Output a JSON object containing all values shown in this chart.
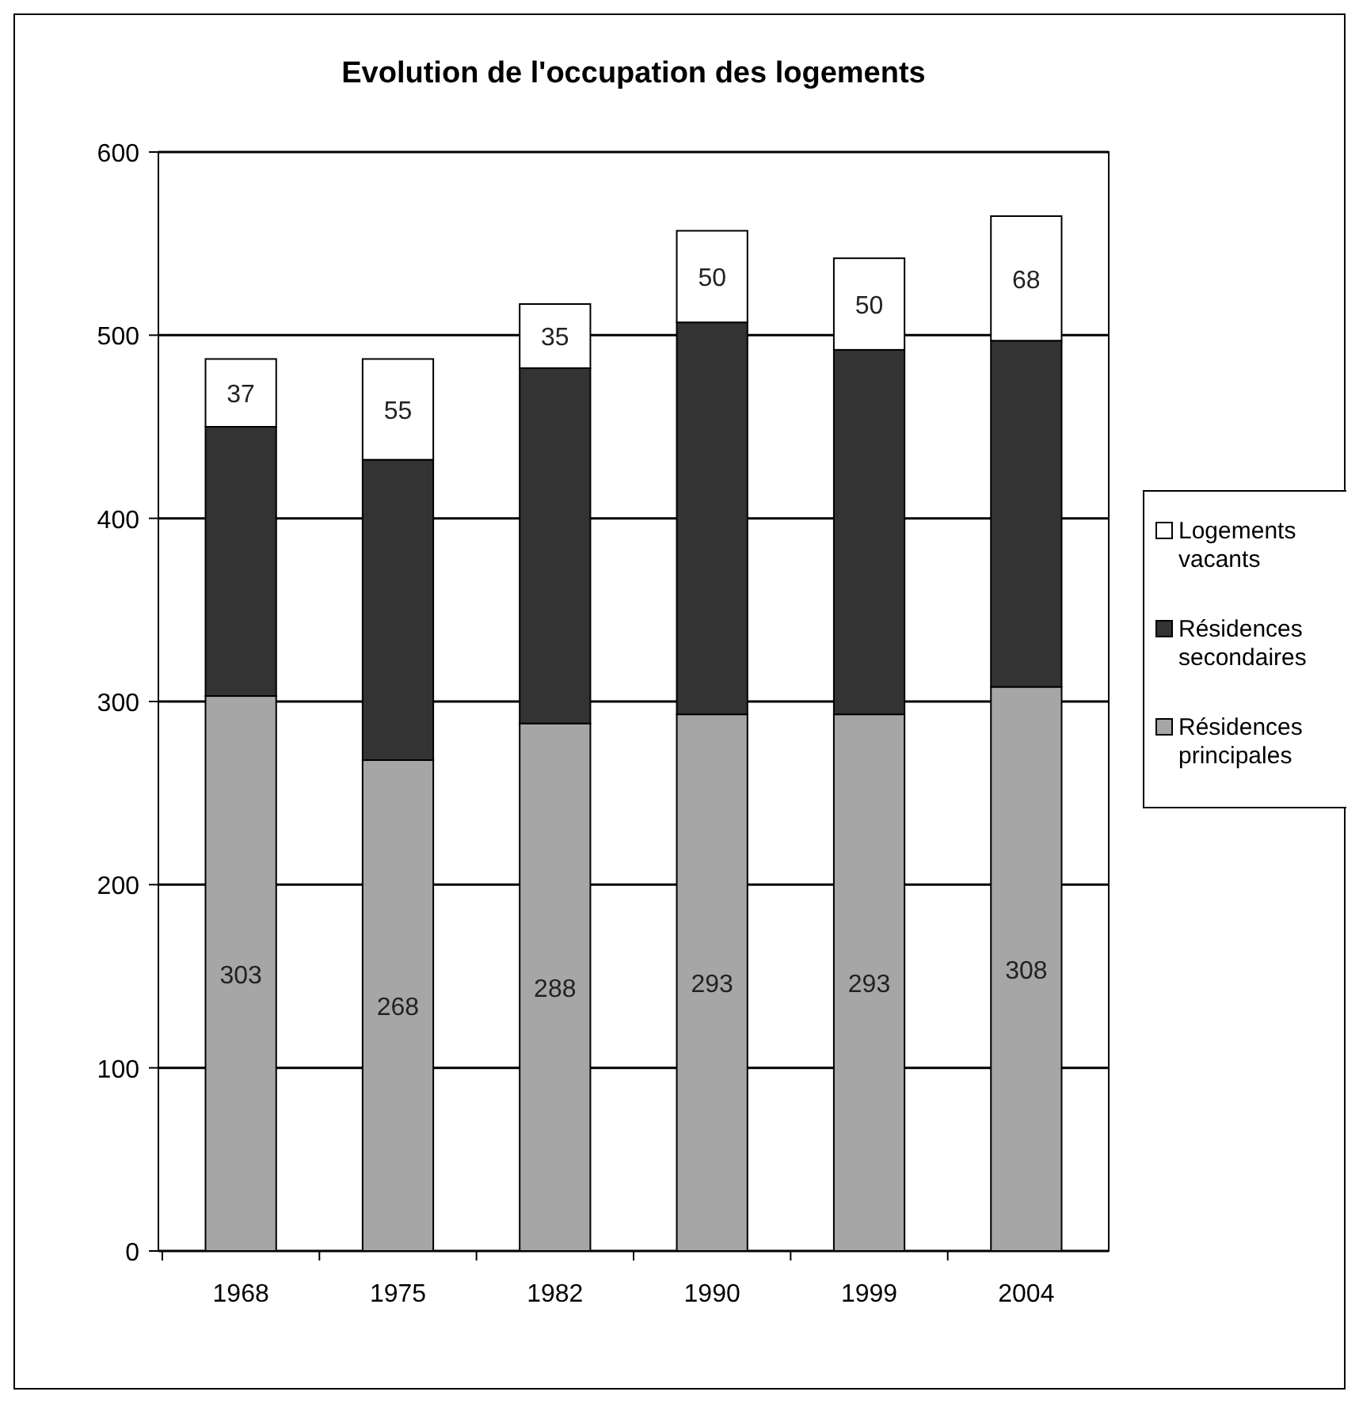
{
  "chart_data": {
    "type": "bar",
    "title": "Evolution de l'occupation des logements",
    "categories": [
      "1968",
      "1975",
      "1982",
      "1990",
      "1999",
      "2004"
    ],
    "stacked": true,
    "ylim": [
      0,
      600
    ],
    "yticks": [
      0,
      100,
      200,
      300,
      400,
      500,
      600
    ],
    "grid": "y",
    "legend": "right",
    "series": [
      {
        "name": "Résidences principales",
        "color": "#a6a6a6",
        "values": [
          303,
          268,
          288,
          293,
          293,
          308
        ],
        "value_labels": [
          "303",
          "268",
          "288",
          "293",
          "293",
          "308"
        ]
      },
      {
        "name": "Résidences secondaires",
        "color": "#333333",
        "values": [
          147,
          164,
          194,
          214,
          199,
          189
        ]
      },
      {
        "name": "Logements vacants",
        "color": "#ffffff",
        "values": [
          37,
          55,
          35,
          50,
          50,
          68
        ],
        "value_labels": [
          "37",
          "55",
          "35",
          "50",
          "50",
          "68"
        ]
      }
    ]
  }
}
